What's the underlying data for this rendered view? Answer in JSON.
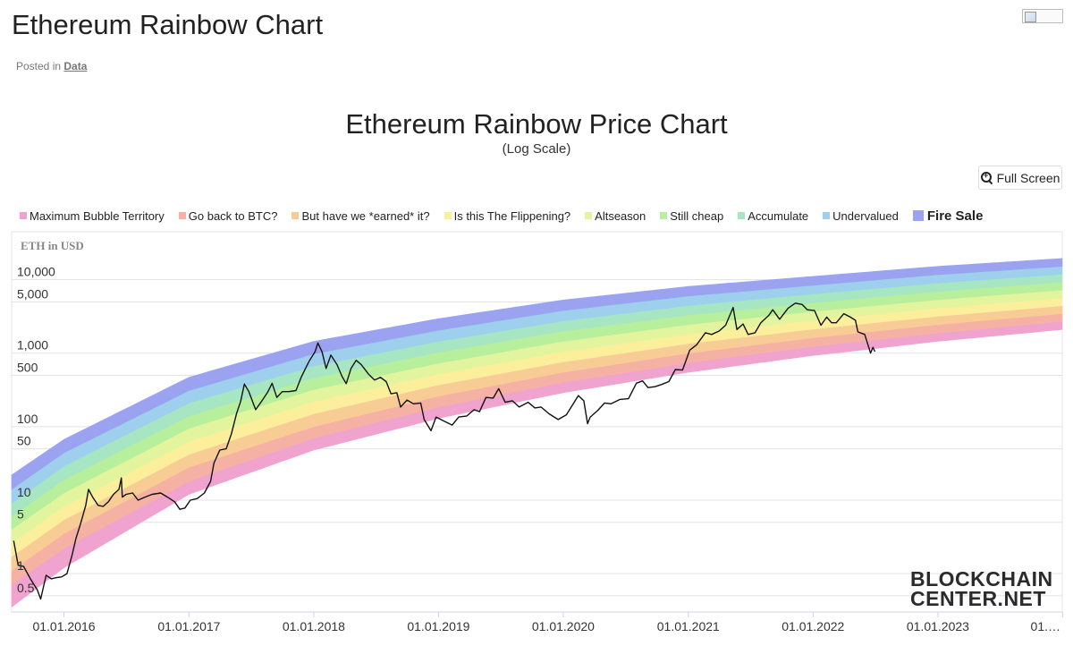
{
  "page": {
    "title": "Ethereum Rainbow Chart",
    "posted_prefix": "Posted in",
    "posted_category": "Data"
  },
  "toolbar": {
    "fullscreen_label": "Full Screen"
  },
  "watermark": {
    "line1": "BLOCKCHAIN",
    "line2": "CENTER.NET"
  },
  "chart_data": {
    "type": "area",
    "title": "Ethereum Rainbow Price Chart",
    "subtitle": "(Log Scale)",
    "ylabel": "ETH in USD",
    "xlabel": "",
    "yscale": "log",
    "ylim": [
      0.3,
      45000
    ],
    "xlim": [
      "2015-08-01",
      "2023-12-31"
    ],
    "grid": true,
    "legend_position": "top",
    "y_ticks": [
      {
        "value": 0.5,
        "label": "0.5"
      },
      {
        "value": 1,
        "label": "1"
      },
      {
        "value": 5,
        "label": "5"
      },
      {
        "value": 10,
        "label": "10"
      },
      {
        "value": 50,
        "label": "50"
      },
      {
        "value": 100,
        "label": "100"
      },
      {
        "value": 500,
        "label": "500"
      },
      {
        "value": 1000,
        "label": "1,000"
      },
      {
        "value": 5000,
        "label": "5,000"
      },
      {
        "value": 10000,
        "label": "10,000"
      }
    ],
    "x_ticks": [
      {
        "value": "2016-01-01",
        "label": "01.01.2016"
      },
      {
        "value": "2017-01-01",
        "label": "01.01.2017"
      },
      {
        "value": "2018-01-01",
        "label": "01.01.2018"
      },
      {
        "value": "2019-01-01",
        "label": "01.01.2019"
      },
      {
        "value": "2020-01-01",
        "label": "01.01.2020"
      },
      {
        "value": "2021-01-01",
        "label": "01.01.2021"
      },
      {
        "value": "2022-01-01",
        "label": "01.01.2022"
      },
      {
        "value": "2023-01-01",
        "label": "01.01.2023"
      },
      {
        "value": "2024-01-01",
        "label": "01.…"
      }
    ],
    "bands": [
      {
        "name": "Maximum Bubble Territory",
        "color": "#f0a3cf"
      },
      {
        "name": "Go back to BTC?",
        "color": "#f5b1a3"
      },
      {
        "name": "But have we *earned* it?",
        "color": "#f8cc95"
      },
      {
        "name": "Is this The Flippening?",
        "color": "#fbef9c"
      },
      {
        "name": "Altseason",
        "color": "#e2f59e"
      },
      {
        "name": "Still cheap",
        "color": "#b8ef9c"
      },
      {
        "name": "Accumulate",
        "color": "#a6e6c3"
      },
      {
        "name": "Undervalued",
        "color": "#9ed0ee"
      },
      {
        "name": "Fire Sale",
        "color": "#9ba3f1"
      }
    ],
    "band_bounds": [
      {
        "x": "2015-08-01",
        "bounds": [
          0.35,
          0.7,
          1.1,
          1.7,
          2.6,
          4.0,
          6.0,
          9.0,
          14,
          22
        ]
      },
      {
        "x": "2016-01-01",
        "bounds": [
          1.2,
          2.2,
          3.5,
          5.4,
          8.2,
          12.5,
          19,
          29,
          44,
          67
        ]
      },
      {
        "x": "2017-01-01",
        "bounds": [
          12,
          18,
          28,
          42,
          63,
          95,
          140,
          210,
          310,
          470
        ]
      },
      {
        "x": "2018-01-01",
        "bounds": [
          48,
          70,
          100,
          150,
          220,
          320,
          460,
          670,
          980,
          1450
        ]
      },
      {
        "x": "2019-01-01",
        "bounds": [
          130,
          185,
          260,
          370,
          520,
          730,
          1030,
          1450,
          2050,
          2950
        ]
      },
      {
        "x": "2020-01-01",
        "bounds": [
          290,
          400,
          550,
          760,
          1050,
          1450,
          2000,
          2750,
          3800,
          5300
        ]
      },
      {
        "x": "2021-01-01",
        "bounds": [
          550,
          740,
          1000,
          1350,
          1820,
          2450,
          3300,
          4450,
          6000,
          8100
        ]
      },
      {
        "x": "2022-01-01",
        "bounds": [
          930,
          1230,
          1620,
          2130,
          2800,
          3700,
          4850,
          6400,
          8400,
          11100
        ]
      },
      {
        "x": "2023-01-01",
        "bounds": [
          1450,
          1880,
          2450,
          3180,
          4120,
          5350,
          6950,
          9000,
          11700,
          15200
        ]
      },
      {
        "x": "2023-12-31",
        "bounds": [
          2100,
          2700,
          3450,
          4420,
          5650,
          7250,
          9300,
          11900,
          15200,
          19500
        ]
      }
    ],
    "series": [
      {
        "points": [
          [
            "2015-08-07",
            2.8
          ],
          [
            "2015-08-20",
            1.3
          ],
          [
            "2015-09-05",
            1.25
          ],
          [
            "2015-09-25",
            0.85
          ],
          [
            "2015-10-15",
            0.6
          ],
          [
            "2015-10-25",
            0.45
          ],
          [
            "2015-11-10",
            0.95
          ],
          [
            "2015-11-25",
            0.85
          ],
          [
            "2015-12-10",
            0.88
          ],
          [
            "2015-12-25",
            0.9
          ],
          [
            "2016-01-10",
            1.0
          ],
          [
            "2016-01-25",
            1.8
          ],
          [
            "2016-02-05",
            3.0
          ],
          [
            "2016-02-20",
            5.0
          ],
          [
            "2016-03-05",
            8.5
          ],
          [
            "2016-03-13",
            14
          ],
          [
            "2016-03-25",
            11
          ],
          [
            "2016-04-10",
            8.5
          ],
          [
            "2016-04-25",
            8.2
          ],
          [
            "2016-05-10",
            9.5
          ],
          [
            "2016-05-25",
            12
          ],
          [
            "2016-06-10",
            14
          ],
          [
            "2016-06-17",
            20
          ],
          [
            "2016-06-20",
            11
          ],
          [
            "2016-07-01",
            12
          ],
          [
            "2016-07-20",
            12.5
          ],
          [
            "2016-08-05",
            10
          ],
          [
            "2016-08-25",
            11
          ],
          [
            "2016-09-15",
            12
          ],
          [
            "2016-10-10",
            12.5
          ],
          [
            "2016-10-30",
            11
          ],
          [
            "2016-11-20",
            9.5
          ],
          [
            "2016-12-05",
            7.5
          ],
          [
            "2016-12-20",
            7.8
          ],
          [
            "2017-01-05",
            10
          ],
          [
            "2017-01-25",
            10.5
          ],
          [
            "2017-02-15",
            12.5
          ],
          [
            "2017-03-05",
            18
          ],
          [
            "2017-03-15",
            32
          ],
          [
            "2017-04-01",
            48
          ],
          [
            "2017-04-20",
            50
          ],
          [
            "2017-05-05",
            80
          ],
          [
            "2017-05-20",
            150
          ],
          [
            "2017-06-01",
            220
          ],
          [
            "2017-06-12",
            380
          ],
          [
            "2017-06-25",
            300
          ],
          [
            "2017-07-15",
            170
          ],
          [
            "2017-08-01",
            220
          ],
          [
            "2017-08-20",
            300
          ],
          [
            "2017-09-01",
            390
          ],
          [
            "2017-09-15",
            250
          ],
          [
            "2017-10-01",
            300
          ],
          [
            "2017-10-20",
            300
          ],
          [
            "2017-11-10",
            310
          ],
          [
            "2017-11-25",
            470
          ],
          [
            "2017-12-10",
            650
          ],
          [
            "2017-12-20",
            800
          ],
          [
            "2018-01-05",
            1050
          ],
          [
            "2018-01-13",
            1380
          ],
          [
            "2018-01-25",
            1050
          ],
          [
            "2018-02-06",
            620
          ],
          [
            "2018-02-20",
            940
          ],
          [
            "2018-03-10",
            700
          ],
          [
            "2018-03-25",
            480
          ],
          [
            "2018-04-06",
            385
          ],
          [
            "2018-04-20",
            620
          ],
          [
            "2018-05-05",
            800
          ],
          [
            "2018-05-20",
            700
          ],
          [
            "2018-06-10",
            520
          ],
          [
            "2018-06-28",
            430
          ],
          [
            "2018-07-15",
            470
          ],
          [
            "2018-08-01",
            410
          ],
          [
            "2018-08-15",
            280
          ],
          [
            "2018-09-01",
            290
          ],
          [
            "2018-09-12",
            185
          ],
          [
            "2018-10-01",
            230
          ],
          [
            "2018-10-20",
            205
          ],
          [
            "2018-11-10",
            210
          ],
          [
            "2018-11-20",
            125
          ],
          [
            "2018-12-10",
            88
          ],
          [
            "2018-12-25",
            135
          ],
          [
            "2019-01-15",
            120
          ],
          [
            "2019-02-10",
            105
          ],
          [
            "2019-03-01",
            135
          ],
          [
            "2019-03-25",
            140
          ],
          [
            "2019-04-15",
            170
          ],
          [
            "2019-05-01",
            160
          ],
          [
            "2019-05-20",
            250
          ],
          [
            "2019-06-10",
            245
          ],
          [
            "2019-06-26",
            330
          ],
          [
            "2019-07-15",
            215
          ],
          [
            "2019-08-05",
            225
          ],
          [
            "2019-08-25",
            185
          ],
          [
            "2019-09-20",
            215
          ],
          [
            "2019-10-10",
            180
          ],
          [
            "2019-10-28",
            185
          ],
          [
            "2019-11-20",
            150
          ],
          [
            "2019-12-17",
            125
          ],
          [
            "2020-01-10",
            145
          ],
          [
            "2020-02-14",
            265
          ],
          [
            "2020-03-01",
            225
          ],
          [
            "2020-03-12",
            110
          ],
          [
            "2020-03-20",
            135
          ],
          [
            "2020-04-10",
            165
          ],
          [
            "2020-05-01",
            210
          ],
          [
            "2020-05-20",
            205
          ],
          [
            "2020-06-15",
            235
          ],
          [
            "2020-07-10",
            240
          ],
          [
            "2020-08-02",
            390
          ],
          [
            "2020-08-20",
            420
          ],
          [
            "2020-09-05",
            340
          ],
          [
            "2020-09-25",
            350
          ],
          [
            "2020-10-15",
            375
          ],
          [
            "2020-11-05",
            410
          ],
          [
            "2020-11-24",
            600
          ],
          [
            "2020-12-15",
            590
          ],
          [
            "2021-01-05",
            1100
          ],
          [
            "2021-01-25",
            1300
          ],
          [
            "2021-02-20",
            1900
          ],
          [
            "2021-03-10",
            1800
          ],
          [
            "2021-04-01",
            2000
          ],
          [
            "2021-04-20",
            2400
          ],
          [
            "2021-05-12",
            4200
          ],
          [
            "2021-05-23",
            2100
          ],
          [
            "2021-06-10",
            2500
          ],
          [
            "2021-06-25",
            1800
          ],
          [
            "2021-07-15",
            1900
          ],
          [
            "2021-08-01",
            2600
          ],
          [
            "2021-08-25",
            3300
          ],
          [
            "2021-09-05",
            3900
          ],
          [
            "2021-09-25",
            2900
          ],
          [
            "2021-10-20",
            4100
          ],
          [
            "2021-11-10",
            4800
          ],
          [
            "2021-11-30",
            4600
          ],
          [
            "2021-12-15",
            3900
          ],
          [
            "2022-01-05",
            3800
          ],
          [
            "2022-01-24",
            2400
          ],
          [
            "2022-02-10",
            3100
          ],
          [
            "2022-02-24",
            2600
          ],
          [
            "2022-03-10",
            2600
          ],
          [
            "2022-04-01",
            3450
          ],
          [
            "2022-04-20",
            3100
          ],
          [
            "2022-05-05",
            2800
          ],
          [
            "2022-05-12",
            1950
          ],
          [
            "2022-06-01",
            1800
          ],
          [
            "2022-06-18",
            1000
          ],
          [
            "2022-06-25",
            1200
          ],
          [
            "2022-07-01",
            1050
          ]
        ]
      }
    ]
  }
}
